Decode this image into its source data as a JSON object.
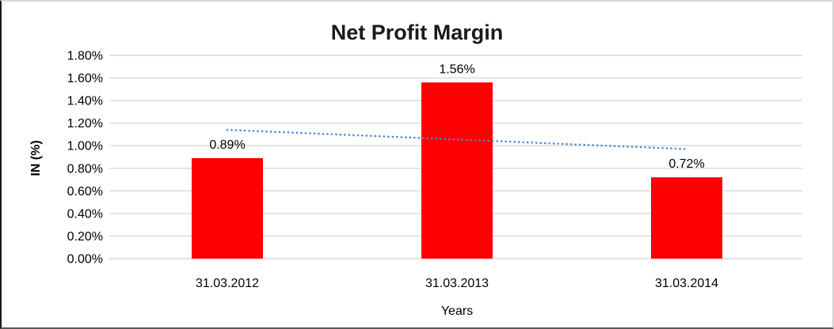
{
  "chart_data": {
    "type": "bar",
    "title": "Net Profit Margin",
    "xlabel": "Years",
    "ylabel": "IN (%)",
    "categories": [
      "31.03.2012",
      "31.03.2013",
      "31.03.2014"
    ],
    "values": [
      0.89,
      1.56,
      0.72
    ],
    "data_labels": [
      "0.89%",
      "1.56%",
      "0.72%"
    ],
    "ylim": [
      0,
      1.8
    ],
    "ytick_step": 0.2,
    "ytick_labels": [
      "0.00%",
      "0.20%",
      "0.40%",
      "0.60%",
      "0.80%",
      "1.00%",
      "1.20%",
      "1.40%",
      "1.60%",
      "1.80%"
    ],
    "grid": true,
    "legend": "none",
    "colors": {
      "bar": "#ff0000",
      "gridline": "#d9d9d9",
      "trendline": "#4e87c9",
      "text": "#000000",
      "title": "#1a1a1a"
    },
    "trendline": {
      "type": "linear",
      "style": "dotted",
      "start_value": 1.14,
      "end_value": 0.97
    }
  }
}
